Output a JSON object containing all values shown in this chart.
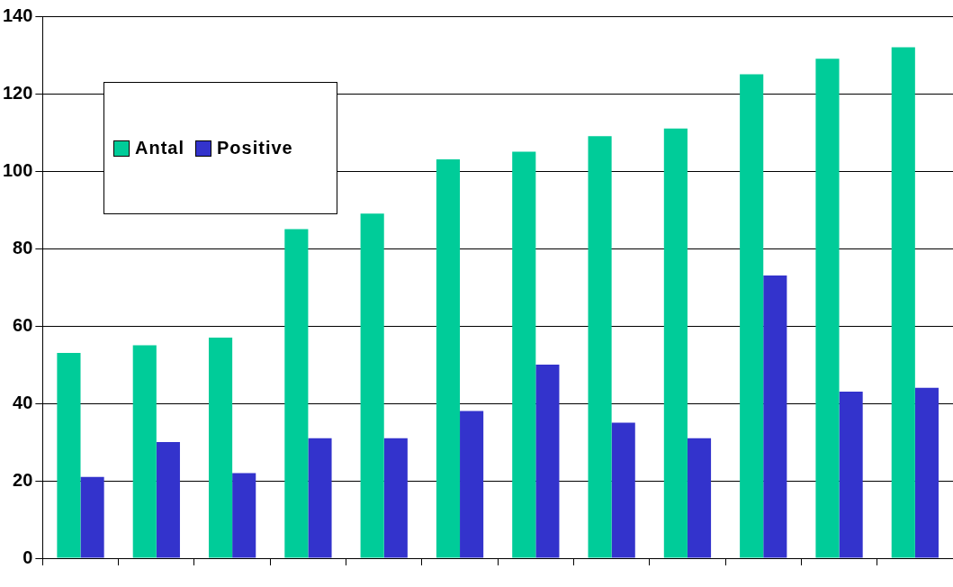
{
  "chart_data": {
    "type": "bar",
    "categories": [
      null,
      null,
      null,
      null,
      null,
      null,
      null,
      null,
      null,
      null,
      null,
      null
    ],
    "series": [
      {
        "name": "Antal",
        "color": "#00cc99",
        "values": [
          53,
          55,
          57,
          85,
          89,
          103,
          105,
          109,
          111,
          125,
          129,
          132
        ]
      },
      {
        "name": "Positive",
        "color": "#3333cc",
        "values": [
          21,
          30,
          22,
          31,
          31,
          38,
          50,
          35,
          31,
          73,
          43,
          44
        ]
      }
    ],
    "ylim": [
      0,
      140
    ],
    "yticks": [
      0,
      20,
      40,
      60,
      80,
      100,
      120,
      140
    ],
    "grid": "y",
    "legend": "top left"
  }
}
